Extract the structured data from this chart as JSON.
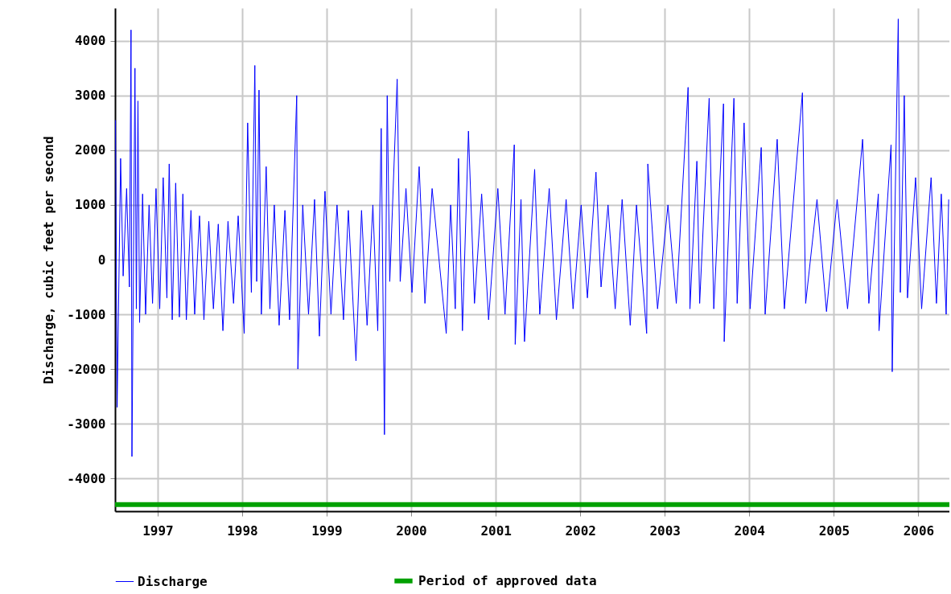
{
  "chart_data": {
    "type": "line",
    "ylabel": "Discharge, cubic feet per second",
    "xlim": [
      "1996-07-01",
      "2006-05-15"
    ],
    "ylim": [
      -4600,
      4600
    ],
    "xticks": [
      "1997",
      "1998",
      "1999",
      "2000",
      "2001",
      "2002",
      "2003",
      "2004",
      "2005",
      "2006"
    ],
    "yticks": [
      -4000,
      -3000,
      -2000,
      -1000,
      0,
      1000,
      2000,
      3000,
      4000
    ],
    "grid": true,
    "legend": "bottom",
    "series": [
      {
        "name": "Discharge",
        "color": "#0000ff",
        "x": [
          "1996-07-03",
          "1996-07-10",
          "1996-07-25",
          "1996-08-05",
          "1996-08-20",
          "1996-09-01",
          "1996-09-08",
          "1996-09-12",
          "1996-09-25",
          "1996-10-01",
          "1996-10-08",
          "1996-10-15",
          "1996-10-28",
          "1996-11-10",
          "1996-11-25",
          "1996-12-10",
          "1996-12-25",
          "1997-01-10",
          "1997-01-25",
          "1997-02-10",
          "1997-02-20",
          "1997-03-05",
          "1997-03-20",
          "1997-04-05",
          "1997-04-20",
          "1997-05-05",
          "1997-05-25",
          "1997-06-10",
          "1997-07-01",
          "1997-07-20",
          "1997-08-10",
          "1997-08-30",
          "1997-09-20",
          "1997-10-10",
          "1997-11-01",
          "1997-11-25",
          "1997-12-15",
          "1998-01-10",
          "1998-01-25",
          "1998-02-10",
          "1998-02-25",
          "1998-03-05",
          "1998-03-15",
          "1998-03-25",
          "1998-04-15",
          "1998-05-01",
          "1998-05-20",
          "1998-06-10",
          "1998-07-05",
          "1998-07-25",
          "1998-08-25",
          "1998-08-30",
          "1998-09-20",
          "1998-10-15",
          "1998-11-10",
          "1998-12-01",
          "1998-12-25",
          "1999-01-20",
          "1999-02-15",
          "1999-03-15",
          "1999-04-05",
          "1999-05-08",
          "1999-06-01",
          "1999-06-25",
          "1999-07-20",
          "1999-08-10",
          "1999-08-25",
          "1999-09-08",
          "1999-09-20",
          "1999-10-01",
          "1999-11-02",
          "1999-11-15",
          "1999-12-10",
          "2000-01-05",
          "2000-02-05",
          "2000-03-01",
          "2000-04-01",
          "2000-06-01",
          "2000-06-20",
          "2000-07-10",
          "2000-07-24",
          "2000-08-10",
          "2000-09-05",
          "2000-10-01",
          "2000-11-01",
          "2000-12-01",
          "2001-01-10",
          "2001-02-10",
          "2001-03-22",
          "2001-03-26",
          "2001-04-20",
          "2001-05-05",
          "2001-06-18",
          "2001-07-10",
          "2001-08-20",
          "2001-09-20",
          "2001-11-01",
          "2001-12-01",
          "2002-01-05",
          "2002-02-01",
          "2002-03-10",
          "2002-04-01",
          "2002-05-01",
          "2002-06-01",
          "2002-07-01",
          "2002-08-05",
          "2002-09-01",
          "2002-10-15",
          "2002-10-20",
          "2002-12-01",
          "2003-01-15",
          "2003-02-20",
          "2003-04-12",
          "2003-04-20",
          "2003-05-20",
          "2003-06-01",
          "2003-07-12",
          "2003-08-01",
          "2003-09-12",
          "2003-09-15",
          "2003-10-27",
          "2003-11-10",
          "2003-12-10",
          "2004-01-05",
          "2004-02-22",
          "2004-03-10",
          "2004-05-01",
          "2004-06-01",
          "2004-08-18",
          "2004-09-01",
          "2004-10-20",
          "2004-11-30",
          "2005-01-15",
          "2005-03-01",
          "2005-05-05",
          "2005-06-01",
          "2005-07-12",
          "2005-07-15",
          "2005-09-05",
          "2005-09-10",
          "2005-10-06",
          "2005-10-15",
          "2005-11-01",
          "2005-11-15",
          "2005-12-20",
          "2006-01-15",
          "2006-02-25",
          "2006-03-20",
          "2006-04-10",
          "2006-05-01",
          "2006-05-12"
        ],
        "values": [
          2550,
          -2700,
          1850,
          -300,
          1300,
          -500,
          4200,
          -3600,
          3500,
          -900,
          2900,
          -1150,
          1200,
          -1000,
          1000,
          -800,
          1300,
          -900,
          1500,
          -700,
          1750,
          -1100,
          1400,
          -1050,
          1200,
          -1100,
          900,
          -1000,
          800,
          -1100,
          700,
          -900,
          650,
          -1300,
          700,
          -800,
          800,
          -1350,
          2500,
          -600,
          3550,
          -400,
          3100,
          -1000,
          1700,
          -900,
          1000,
          -1200,
          900,
          -1100,
          3000,
          -2000,
          1000,
          -1000,
          1100,
          -1400,
          1250,
          -1000,
          1000,
          -1100,
          900,
          -1850,
          900,
          -1200,
          1000,
          -1300,
          2400,
          -3200,
          3000,
          -400,
          3300,
          -400,
          1300,
          -600,
          1700,
          -800,
          1300,
          -1350,
          1000,
          -900,
          1850,
          -1300,
          2350,
          -800,
          1200,
          -1100,
          1300,
          -1000,
          2100,
          -1550,
          1100,
          -1500,
          1650,
          -1000,
          1300,
          -1100,
          1100,
          -900,
          1000,
          -700,
          1600,
          -500,
          1000,
          -900,
          1100,
          -1200,
          1000,
          -1350,
          1750,
          -900,
          1000,
          -800,
          3150,
          -900,
          1800,
          -800,
          2950,
          -900,
          2850,
          -1500,
          2950,
          -800,
          2500,
          -900,
          2050,
          -1000,
          2200,
          -900,
          3050,
          -800,
          1100,
          -950,
          1100,
          -900,
          2200,
          -800,
          1200,
          -1300,
          2100,
          -2050,
          4400,
          -600,
          3000,
          -700,
          1500,
          -900,
          1500,
          -800,
          1200,
          -1000,
          1100
        ]
      },
      {
        "name": "Period of approved data",
        "color": "#00a000",
        "x": [
          "1996-07-01",
          "2006-05-15"
        ],
        "values": [
          -4480,
          -4480
        ]
      }
    ]
  }
}
